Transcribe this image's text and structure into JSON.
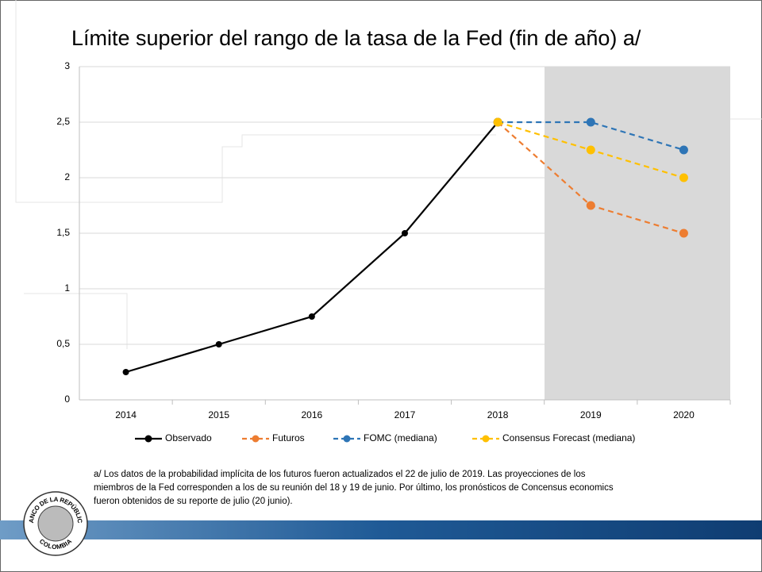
{
  "chart_data": {
    "type": "line",
    "title": "Límite superior del rango de la tasa de la Fed (fin de año) a/",
    "categories": [
      "2014",
      "2015",
      "2016",
      "2017",
      "2018",
      "2019",
      "2020"
    ],
    "series": [
      {
        "name": "Observado",
        "color": "#000000",
        "line_style": "solid",
        "values": [
          0.25,
          0.5,
          0.75,
          1.5,
          2.5,
          null,
          null
        ]
      },
      {
        "name": "Futuros",
        "color": "#ED7D31",
        "line_style": "dashed",
        "values": [
          null,
          null,
          null,
          null,
          2.5,
          1.75,
          1.5
        ]
      },
      {
        "name": "FOMC (mediana)",
        "color": "#2E75B6",
        "line_style": "dashed",
        "values": [
          null,
          null,
          null,
          null,
          2.5,
          2.5,
          2.25
        ]
      },
      {
        "name": "Consensus Forecast (mediana)",
        "color": "#FFC000",
        "line_style": "dashed",
        "values": [
          null,
          null,
          null,
          null,
          2.5,
          2.25,
          2.0
        ]
      }
    ],
    "ylim": [
      0,
      3
    ],
    "yticks": [
      0,
      {
        "value": 0.5,
        "label": "0,5"
      },
      1,
      {
        "value": 1.5,
        "label": "1,5"
      },
      2,
      {
        "value": 2.5,
        "label": "2,5"
      },
      3
    ],
    "grid": true,
    "legend": "bottom",
    "footnote": [
      "a/ Los datos de la probabilidad implícita de los futuros fueron actualizados el 22 de julio de 2019. Las proyecciones de los",
      "miembros de la Fed corresponden a los de su reunión del 18 y 19 de junio. Por último, los pronósticos de Concensus economics",
      "fueron obtenidos de su reporte de julio (20 junio)."
    ]
  },
  "logo": {
    "top": "BANCO DE LA REPÚBLICA",
    "bottom": "COLOMBIA"
  }
}
